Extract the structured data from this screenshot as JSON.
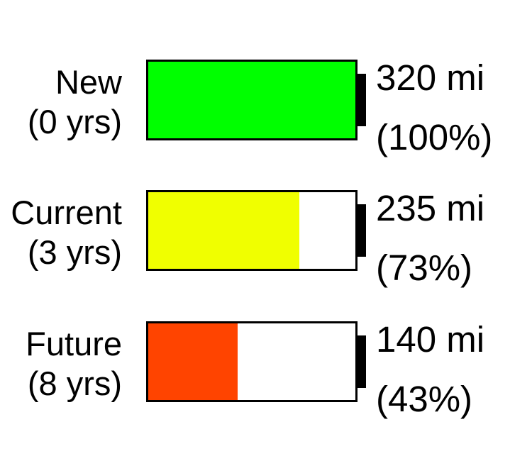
{
  "batteries": [
    {
      "label_line1": "New",
      "label_line2": "(0 yrs)",
      "range": "320 mi",
      "percent_label": "(100%)",
      "level": 1.0,
      "color": "#00ff00"
    },
    {
      "label_line1": "Current",
      "label_line2": "(3 yrs)",
      "range": "235 mi",
      "percent_label": "(73%)",
      "level": 0.73,
      "color": "#f0ff00"
    },
    {
      "label_line1": "Future",
      "label_line2": "(8 yrs)",
      "range": "140 mi",
      "percent_label": "(43%)",
      "level": 0.43,
      "color": "#ff4400"
    }
  ]
}
